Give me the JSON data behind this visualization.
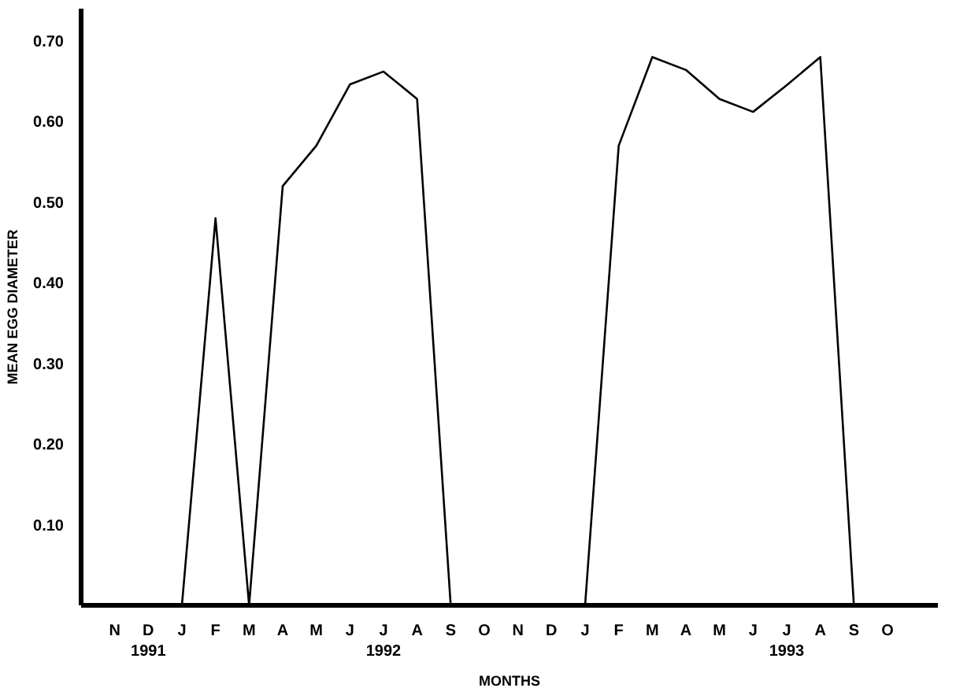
{
  "chart_data": {
    "type": "line",
    "xlabel": "MONTHS",
    "ylabel": "MEAN EGG DIAMETER",
    "categories": [
      "N",
      "D\n1991",
      "J",
      "F",
      "M",
      "A",
      "M",
      "J",
      "J\n1992",
      "A",
      "S",
      "O",
      "N",
      "D",
      "J",
      "F",
      "M",
      "A",
      "M",
      "J",
      "J\n1993",
      "A",
      "S",
      "O"
    ],
    "series": [
      {
        "color": "#000000",
        "values": [
          null,
          null,
          0,
          0.48,
          0,
          0.52,
          0.57,
          0.646,
          0.662,
          0.628,
          0,
          null,
          null,
          null,
          0,
          0.57,
          0.68,
          0.664,
          0.628,
          0.612,
          0.645,
          0.68,
          0,
          null
        ]
      }
    ],
    "ylim": [
      0,
      0.74
    ],
    "yticks": [
      {
        "value": 0.1,
        "label": "0.10"
      },
      {
        "value": 0.2,
        "label": "0.20"
      },
      {
        "value": 0.3,
        "label": "0.30"
      },
      {
        "value": 0.4,
        "label": "0.40"
      },
      {
        "value": 0.5,
        "label": "0.50"
      },
      {
        "value": 0.6,
        "label": "0.60"
      },
      {
        "value": 0.7,
        "label": "0.70"
      }
    ],
    "grid": false,
    "marker": "none",
    "line_style": "solid"
  }
}
